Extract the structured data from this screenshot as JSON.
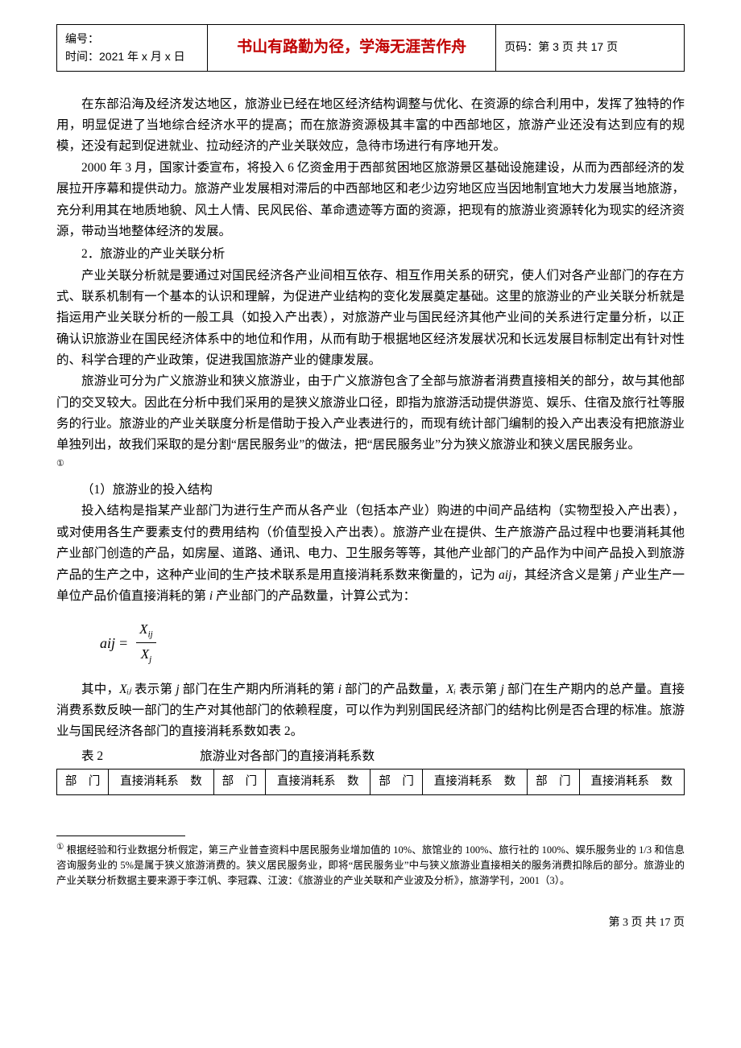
{
  "header": {
    "idLabel": "编号：",
    "dateLine": "时间：2021 年 x 月 x 日",
    "motto": "书山有路勤为径，学海无涯苦作舟",
    "mottoColor": "#c00000",
    "pageLabel": "页码：第 3 页 共 17 页"
  },
  "body": {
    "p1": "在东部沿海及经济发达地区，旅游业已经在地区经济结构调整与优化、在资源的综合利用中，发挥了独特的作用，明显促进了当地综合经济水平的提高；而在旅游资源极其丰富的中西部地区，旅游产业还没有达到应有的规模，还没有起到促进就业、拉动经济的产业关联效应，急待市场进行有序地开发。",
    "p2": "2000 年 3 月，国家计委宣布，将投入 6 亿资金用于西部贫困地区旅游景区基础设施建设，从而为西部经济的发展拉开序幕和提供动力。旅游产业发展相对滞后的中西部地区和老少边穷地区应当因地制宜地大力发展当地旅游，充分利用其在地质地貌、风土人情、民风民俗、革命遗迹等方面的资源，把现有的旅游业资源转化为现实的经济资源，带动当地整体经济的发展。",
    "s2": "2．旅游业的产业关联分析",
    "p3": "产业关联分析就是要通过对国民经济各产业间相互依存、相互作用关系的研究，使人们对各产业部门的存在方式、联系机制有一个基本的认识和理解，为促进产业结构的变化发展奠定基础。这里的旅游业的产业关联分析就是指运用产业关联分析的一般工具（如投入产出表），对旅游产业与国民经济其他产业间的关系进行定量分析，以正确认识旅游业在国民经济体系中的地位和作用，从而有助于根据地区经济发展状况和长远发展目标制定出有针对性的、科学合理的产业政策，促进我国旅游产业的健康发展。",
    "p4a": "旅游业可分为广义旅游业和狭义旅游业，由于广义旅游包含了全部与旅游者消费直接相关的部分，故与其他部门的交叉较大。因此在分析中我们采用的是狭义旅游业口径，即指为旅游活动提供游览、娱乐、住宿及旅行社等服务的行业。旅游业的产业关联度分析是借助于投入产业表进行的，而现有统计部门编制的投入产出表没有把旅游业单独列出，故我们采取的是分割“居民服务业”的做法，把“居民服务业”分为狭义旅游业和狭义居民服务业。",
    "p4marker": "①",
    "s3": "（1）旅游业的投入结构",
    "p5a": "投入结构是指某产业部门为进行生产而从各产业（包括本产业）购进的中间产品结构（实物型投入产出表），或对使用各生产要素支付的费用结构（价值型投入产出表）。旅游产业在提供、生产旅游产品过程中也要消耗其他产业部门创造的产品，如房屋、道路、通讯、电力、卫生服务等等，其他产业部门的产品作为中间产品投入到旅游产品的生产之中，这种产业间的生产技术联系是用直接消耗系数来衡量的，记为 ",
    "p5b": "，其经济含义是第 ",
    "p5c": " 产业生产一单位产品价值直接消耗的第 ",
    "p5d": " 产业部门的产品数量，计算公式为：",
    "aij": "aij",
    "j": "j",
    "i": "i",
    "formula": {
      "lhs": "aij",
      "eq": "=",
      "num": "X",
      "numSub": "ij",
      "den": "X",
      "denSub": "j"
    },
    "p6a": "其中，",
    "p6b": " 表示第 ",
    "p6c": " 部门在生产期内所消耗的第 ",
    "p6d": " 部门的产品数量，",
    "p6e": " 表示第 ",
    "p6f": " 部门在生产期内的总产量。直接消费系数反映一部门的生产对其他部门的依赖程度，可以作为判别国民经济部门的结构比例是否合理的标准。旅游业与国民经济各部门的直接消耗系数如表 2。",
    "Xij": "Xᵢⱼ",
    "Xi": "Xᵢ",
    "tableNo": "表 2",
    "tableTitle": "旅游业对各部门的直接消耗系数"
  },
  "table": {
    "h1": "部　门",
    "h2": "直接消耗系　数",
    "cols": 4
  },
  "footnote": {
    "marker": "①",
    "text": " 根据经验和行业数据分析假定，第三产业普查资料中居民服务业增加值的 10%、旅馆业的 100%、旅行社的 100%、娱乐服务业的 1/3 和信息咨询服务业的 5%是属于狭义旅游消费的。狭义居民服务业，即将“居民服务业”中与狭义旅游业直接相关的服务消费扣除后的部分。旅游业的产业关联分析数据主要来源于李江帆、李冠霖、江波：《旅游业的产业关联和产业波及分析》，旅游学刊，2001（3）。"
  },
  "footer": {
    "text": "第 3 页 共 17 页"
  }
}
